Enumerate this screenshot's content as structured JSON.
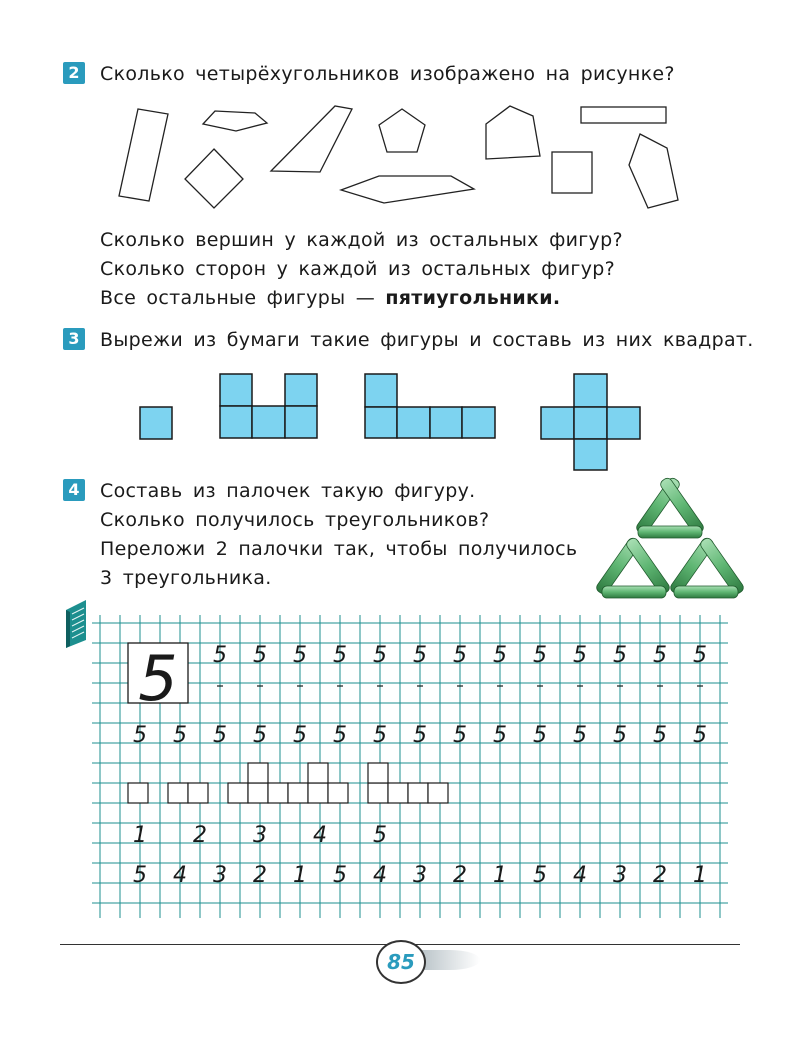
{
  "tasks": [
    {
      "number": "2",
      "lines": [
        "Сколько четырёхугольников изображено на рисунке?"
      ],
      "after_lines": [
        "Сколько вершин у каждой из остальных фигур?",
        "Сколько сторон у каждой из остальных фигур?"
      ],
      "last_line_prefix": "Все остальные фигуры — ",
      "last_line_bold": "пятиугольники."
    },
    {
      "number": "3",
      "lines": [
        "Вырежи из бумаги такие фигуры и составь из них квадрат."
      ]
    },
    {
      "number": "4",
      "lines": [
        "Составь из палочек такую фигуру.",
        "Сколько получилось треугольников?",
        "Переложи 2 палочки так, чтобы получилось",
        "3 треугольника."
      ]
    }
  ],
  "colors": {
    "task_badge": "#2a9bbd",
    "piece_fill": "#7dd3f0",
    "grid_line": "#1d8f8f",
    "stick_green": "#5fb673"
  },
  "copybook": {
    "big_digit": "5",
    "row1": [
      "5",
      "5",
      "5",
      "5",
      "5",
      "5",
      "5",
      "5",
      "5",
      "5",
      "5",
      "5",
      "5"
    ],
    "row2": [
      "5",
      "5",
      "5",
      "5",
      "5",
      "5",
      "5",
      "5",
      "5",
      "5",
      "5",
      "5",
      "5",
      "5",
      "5"
    ],
    "row4": [
      "1",
      "2",
      "3",
      "4",
      "5"
    ],
    "row5": [
      "5",
      "4",
      "3",
      "2",
      "1",
      "5",
      "4",
      "3",
      "2",
      "1",
      "5",
      "4",
      "3",
      "2",
      "1"
    ]
  },
  "page_number": "85",
  "icons": [
    "notebook-icon"
  ]
}
